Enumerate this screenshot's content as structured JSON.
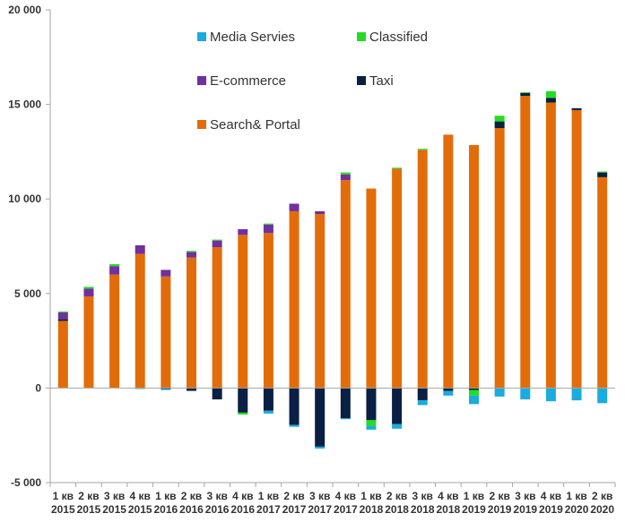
{
  "chart_data": {
    "type": "bar",
    "stacked": true,
    "title": "",
    "xlabel": "",
    "ylabel": "",
    "ylim": [
      -5000,
      20000
    ],
    "yticks": [
      -5000,
      0,
      5000,
      10000,
      15000,
      20000
    ],
    "ytick_labels": [
      "-5 000",
      "0",
      "5 000",
      "10 000",
      "15 000",
      "20 000"
    ],
    "grid": false,
    "legend_position": "top-center",
    "categories": [
      [
        "1 кв",
        "2015"
      ],
      [
        "2 кв",
        "2015"
      ],
      [
        "3 кв",
        "2015"
      ],
      [
        "4 кв",
        "2015"
      ],
      [
        "1 кв",
        "2016"
      ],
      [
        "2 кв",
        "2016"
      ],
      [
        "3 кв",
        "2016"
      ],
      [
        "4 кв",
        "2016"
      ],
      [
        "1 кв",
        "2017"
      ],
      [
        "2 кв",
        "2017"
      ],
      [
        "3 кв",
        "2017"
      ],
      [
        "4 кв",
        "2017"
      ],
      [
        "1 кв",
        "2018"
      ],
      [
        "2 кв",
        "2018"
      ],
      [
        "3 кв",
        "2018"
      ],
      [
        "4 кв",
        "2018"
      ],
      [
        "1 кв",
        "2019"
      ],
      [
        "2 кв",
        "2019"
      ],
      [
        "3 кв",
        "2019"
      ],
      [
        "4 кв",
        "2019"
      ],
      [
        "1 кв",
        "2020"
      ],
      [
        "2 кв",
        "2020"
      ]
    ],
    "series": [
      {
        "name": "Search& Portal",
        "color": "#E36C0A",
        "values": [
          3550,
          4850,
          6000,
          7100,
          5900,
          6900,
          7450,
          8100,
          8200,
          9350,
          9200,
          11000,
          10550,
          11600,
          12600,
          13400,
          12850,
          13750,
          15450,
          15100,
          14700,
          11150
        ]
      },
      {
        "name": "Taxi",
        "color": "#0A1F44",
        "values": [
          100,
          0,
          0,
          0,
          -50,
          -150,
          -600,
          -1300,
          -1200,
          -1950,
          -3100,
          -1600,
          -1700,
          -1900,
          -650,
          -150,
          -100,
          350,
          150,
          250,
          100,
          250
        ]
      },
      {
        "name": "E-commerce",
        "color": "#7030A0",
        "values": [
          350,
          400,
          450,
          450,
          350,
          300,
          350,
          300,
          450,
          400,
          150,
          300,
          0,
          0,
          0,
          0,
          0,
          0,
          0,
          0,
          0,
          0
        ]
      },
      {
        "name": "Classified",
        "color": "#22DD22",
        "values": [
          50,
          100,
          100,
          0,
          0,
          50,
          50,
          -100,
          50,
          0,
          0,
          100,
          -300,
          50,
          50,
          0,
          -300,
          300,
          50,
          350,
          0,
          50
        ]
      },
      {
        "name": "Media Servies",
        "color": "#1AACDE",
        "values": [
          0,
          0,
          0,
          -50,
          -50,
          0,
          0,
          0,
          -150,
          -100,
          -100,
          -50,
          -200,
          -250,
          -250,
          -250,
          -450,
          -450,
          -600,
          -700,
          -650,
          -800
        ]
      }
    ],
    "stack_order": [
      "Search& Portal",
      "Taxi",
      "E-commerce",
      "Classified",
      "Media Servies"
    ],
    "legend": [
      {
        "name": "Media Servies",
        "color": "#1AACDE"
      },
      {
        "name": "Classified",
        "color": "#22DD22"
      },
      {
        "name": "E-commerce",
        "color": "#7030A0"
      },
      {
        "name": "Taxi",
        "color": "#0A1F44"
      },
      {
        "name": "Search& Portal",
        "color": "#E36C0A"
      }
    ],
    "axis_color": "#A6A6A6"
  }
}
